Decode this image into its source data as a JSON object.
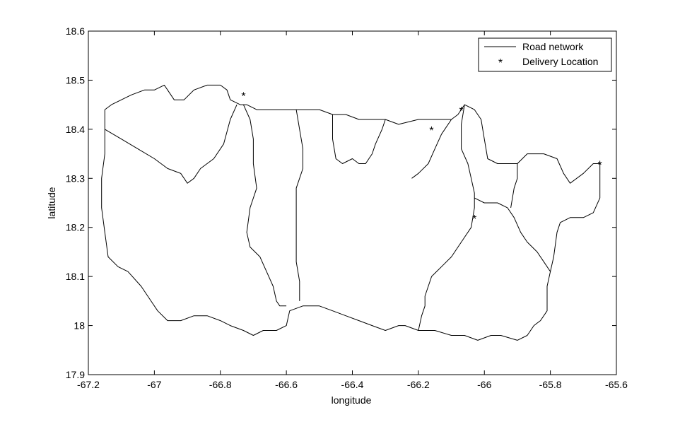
{
  "chart_data": {
    "type": "line",
    "xlabel": "longitude",
    "ylabel": "latitude",
    "xlim": [
      -67.2,
      -65.6
    ],
    "ylim": [
      17.9,
      18.6
    ],
    "xticks": [
      -67.2,
      -67,
      -66.8,
      -66.6,
      -66.4,
      -66.2,
      -66,
      -65.8,
      -65.6
    ],
    "yticks": [
      17.9,
      18,
      18.1,
      18.2,
      18.3,
      18.4,
      18.5,
      18.6
    ],
    "xtick_labels": [
      "-67.2",
      "-67",
      "-66.8",
      "-66.6",
      "-66.4",
      "-66.2",
      "-66",
      "-65.8",
      "-65.6"
    ],
    "ytick_labels": [
      "17.9",
      "18",
      "18.1",
      "18.2",
      "18.3",
      "18.4",
      "18.5",
      "18.6"
    ],
    "grid": false,
    "legend_position": "top-right",
    "legend": [
      {
        "label": "Road network",
        "marker": "line"
      },
      {
        "label": "Delivery Location",
        "marker": "asterisk"
      }
    ],
    "colors": {
      "road": "#000000",
      "delivery": "#cc0000",
      "axes": "#000000"
    },
    "series": [
      {
        "name": "Road network",
        "paths": [
          [
            [
              -67.15,
              18.44
            ],
            [
              -67.13,
              18.45
            ],
            [
              -67.07,
              18.47
            ],
            [
              -67.03,
              18.48
            ],
            [
              -67.0,
              18.48
            ],
            [
              -66.97,
              18.49
            ],
            [
              -66.96,
              18.48
            ],
            [
              -66.94,
              18.46
            ],
            [
              -66.91,
              18.46
            ],
            [
              -66.88,
              18.48
            ],
            [
              -66.84,
              18.49
            ],
            [
              -66.8,
              18.49
            ],
            [
              -66.78,
              18.48
            ],
            [
              -66.77,
              18.46
            ],
            [
              -66.74,
              18.45
            ],
            [
              -66.72,
              18.45
            ],
            [
              -66.69,
              18.44
            ],
            [
              -66.65,
              18.44
            ],
            [
              -66.6,
              18.44
            ],
            [
              -66.55,
              18.44
            ],
            [
              -66.5,
              18.44
            ],
            [
              -66.46,
              18.43
            ],
            [
              -66.42,
              18.43
            ],
            [
              -66.38,
              18.42
            ],
            [
              -66.34,
              18.42
            ],
            [
              -66.3,
              18.42
            ],
            [
              -66.26,
              18.41
            ],
            [
              -66.2,
              18.42
            ],
            [
              -66.15,
              18.42
            ],
            [
              -66.1,
              18.42
            ],
            [
              -66.08,
              18.43
            ],
            [
              -66.06,
              18.45
            ],
            [
              -66.03,
              18.44
            ],
            [
              -66.01,
              18.42
            ],
            [
              -66.0,
              18.38
            ],
            [
              -65.99,
              18.34
            ],
            [
              -65.96,
              18.33
            ],
            [
              -65.9,
              18.33
            ],
            [
              -65.87,
              18.35
            ],
            [
              -65.82,
              18.35
            ],
            [
              -65.78,
              18.34
            ],
            [
              -65.76,
              18.31
            ],
            [
              -65.74,
              18.29
            ],
            [
              -65.7,
              18.31
            ],
            [
              -65.67,
              18.33
            ],
            [
              -65.65,
              18.33
            ],
            [
              -65.65,
              18.3
            ],
            [
              -65.65,
              18.26
            ],
            [
              -65.67,
              18.23
            ],
            [
              -65.7,
              18.22
            ],
            [
              -65.74,
              18.22
            ],
            [
              -65.77,
              18.21
            ],
            [
              -65.78,
              18.19
            ],
            [
              -65.79,
              18.14
            ],
            [
              -65.8,
              18.11
            ],
            [
              -65.81,
              18.08
            ],
            [
              -65.81,
              18.05
            ],
            [
              -65.81,
              18.03
            ],
            [
              -65.83,
              18.01
            ],
            [
              -65.85,
              18.0
            ],
            [
              -65.87,
              17.98
            ],
            [
              -65.9,
              17.97
            ],
            [
              -65.95,
              17.98
            ],
            [
              -65.98,
              17.98
            ],
            [
              -66.02,
              17.97
            ],
            [
              -66.06,
              17.98
            ],
            [
              -66.1,
              17.98
            ],
            [
              -66.15,
              17.99
            ],
            [
              -66.2,
              17.99
            ],
            [
              -66.24,
              18.0
            ],
            [
              -66.26,
              18.0
            ],
            [
              -66.3,
              17.99
            ],
            [
              -66.34,
              18.0
            ],
            [
              -66.38,
              18.01
            ],
            [
              -66.42,
              18.02
            ],
            [
              -66.46,
              18.03
            ],
            [
              -66.5,
              18.04
            ],
            [
              -66.55,
              18.04
            ],
            [
              -66.59,
              18.03
            ],
            [
              -66.6,
              18.0
            ],
            [
              -66.63,
              17.99
            ],
            [
              -66.67,
              17.99
            ],
            [
              -66.7,
              17.98
            ],
            [
              -66.73,
              17.99
            ],
            [
              -66.77,
              18.0
            ],
            [
              -66.8,
              18.01
            ],
            [
              -66.84,
              18.02
            ],
            [
              -66.88,
              18.02
            ],
            [
              -66.92,
              18.01
            ],
            [
              -66.96,
              18.01
            ],
            [
              -66.99,
              18.03
            ],
            [
              -67.01,
              18.05
            ],
            [
              -67.04,
              18.08
            ],
            [
              -67.08,
              18.11
            ],
            [
              -67.11,
              18.12
            ],
            [
              -67.14,
              18.14
            ],
            [
              -67.15,
              18.19
            ],
            [
              -67.16,
              18.24
            ],
            [
              -67.16,
              18.3
            ],
            [
              -67.15,
              18.35
            ],
            [
              -67.15,
              18.4
            ],
            [
              -67.15,
              18.44
            ]
          ],
          [
            [
              -67.15,
              18.4
            ],
            [
              -67.1,
              18.38
            ],
            [
              -67.05,
              18.36
            ],
            [
              -67.0,
              18.34
            ],
            [
              -66.96,
              18.32
            ],
            [
              -66.92,
              18.31
            ],
            [
              -66.9,
              18.29
            ],
            [
              -66.88,
              18.3
            ],
            [
              -66.86,
              18.32
            ],
            [
              -66.82,
              18.34
            ],
            [
              -66.79,
              18.37
            ],
            [
              -66.77,
              18.42
            ],
            [
              -66.75,
              18.45
            ]
          ],
          [
            [
              -66.73,
              18.45
            ],
            [
              -66.71,
              18.42
            ],
            [
              -66.7,
              18.38
            ],
            [
              -66.7,
              18.33
            ],
            [
              -66.69,
              18.28
            ],
            [
              -66.71,
              18.24
            ],
            [
              -66.72,
              18.19
            ],
            [
              -66.71,
              18.16
            ],
            [
              -66.68,
              18.14
            ],
            [
              -66.66,
              18.11
            ],
            [
              -66.64,
              18.08
            ],
            [
              -66.63,
              18.05
            ],
            [
              -66.62,
              18.04
            ],
            [
              -66.6,
              18.04
            ]
          ],
          [
            [
              -66.57,
              18.44
            ],
            [
              -66.56,
              18.4
            ],
            [
              -66.55,
              18.36
            ],
            [
              -66.55,
              18.32
            ],
            [
              -66.57,
              18.28
            ],
            [
              -66.57,
              18.23
            ],
            [
              -66.57,
              18.18
            ],
            [
              -66.57,
              18.13
            ],
            [
              -66.56,
              18.09
            ],
            [
              -66.56,
              18.05
            ]
          ],
          [
            [
              -66.46,
              18.43
            ],
            [
              -66.46,
              18.38
            ],
            [
              -66.45,
              18.34
            ],
            [
              -66.43,
              18.33
            ],
            [
              -66.4,
              18.34
            ],
            [
              -66.38,
              18.33
            ],
            [
              -66.36,
              18.33
            ],
            [
              -66.34,
              18.35
            ],
            [
              -66.33,
              18.37
            ],
            [
              -66.31,
              18.4
            ],
            [
              -66.3,
              18.42
            ]
          ],
          [
            [
              -66.1,
              18.42
            ],
            [
              -66.13,
              18.39
            ],
            [
              -66.15,
              18.36
            ],
            [
              -66.17,
              18.33
            ],
            [
              -66.2,
              18.31
            ],
            [
              -66.22,
              18.3
            ]
          ],
          [
            [
              -66.06,
              18.45
            ],
            [
              -66.07,
              18.41
            ],
            [
              -66.07,
              18.36
            ],
            [
              -66.05,
              18.33
            ],
            [
              -66.04,
              18.3
            ],
            [
              -66.03,
              18.27
            ],
            [
              -66.03,
              18.24
            ],
            [
              -66.04,
              18.2
            ],
            [
              -66.06,
              18.18
            ],
            [
              -66.08,
              18.16
            ],
            [
              -66.1,
              18.14
            ],
            [
              -66.13,
              18.12
            ],
            [
              -66.16,
              18.1
            ],
            [
              -66.17,
              18.08
            ],
            [
              -66.18,
              18.06
            ],
            [
              -66.18,
              18.04
            ],
            [
              -66.19,
              18.02
            ],
            [
              -66.2,
              17.99
            ]
          ],
          [
            [
              -66.03,
              18.26
            ],
            [
              -66.0,
              18.25
            ],
            [
              -65.96,
              18.25
            ],
            [
              -65.93,
              18.24
            ],
            [
              -65.91,
              18.22
            ],
            [
              -65.89,
              18.19
            ],
            [
              -65.87,
              18.17
            ],
            [
              -65.84,
              18.15
            ],
            [
              -65.82,
              18.13
            ],
            [
              -65.8,
              18.11
            ]
          ],
          [
            [
              -65.9,
              18.33
            ],
            [
              -65.9,
              18.3
            ],
            [
              -65.91,
              18.28
            ],
            [
              -65.92,
              18.24
            ]
          ]
        ]
      },
      {
        "name": "Delivery Location",
        "points": [
          [
            -66.73,
            18.47
          ],
          [
            -66.16,
            18.4
          ],
          [
            -66.07,
            18.44
          ],
          [
            -66.03,
            18.22
          ],
          [
            -65.65,
            18.33
          ]
        ]
      }
    ]
  }
}
